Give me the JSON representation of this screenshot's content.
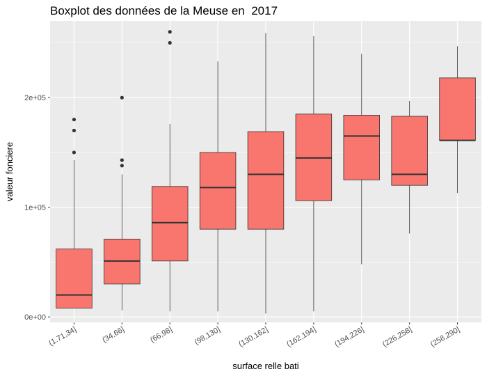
{
  "chart_data": {
    "type": "boxplot",
    "title": "Boxplot des données de la Meuse en  2017",
    "xlabel": "surface relle bati",
    "ylabel": "valeur fonciere",
    "ylim": [
      -5000,
      270000
    ],
    "y_ticks": [
      {
        "value": 0,
        "label": "0e+00"
      },
      {
        "value": 100000,
        "label": "1e+05"
      },
      {
        "value": 200000,
        "label": "2e+05"
      }
    ],
    "grid": true,
    "fill_color": "#F8766D",
    "panel_color": "#EBEBEB",
    "categories": [
      "(1.71,34]",
      "(34,66]",
      "(66,98]",
      "(98,130]",
      "(130,162]",
      "(162,194]",
      "(194,226]",
      "(226,258]",
      "(258,290]"
    ],
    "boxes": [
      {
        "category": "(1.71,34]",
        "whisker_low": 8000,
        "q1": 8000,
        "median": 20000,
        "q3": 62000,
        "whisker_high": 143000,
        "outliers": [
          150000,
          170000,
          180000
        ]
      },
      {
        "category": "(34,66]",
        "whisker_low": 6000,
        "q1": 30000,
        "median": 51000,
        "q3": 71000,
        "whisker_high": 130000,
        "outliers": [
          138000,
          143000,
          200000
        ]
      },
      {
        "category": "(66,98]",
        "whisker_low": 5000,
        "q1": 51000,
        "median": 86000,
        "q3": 119000,
        "whisker_high": 176000,
        "outliers": [
          250000,
          260000
        ]
      },
      {
        "category": "(98,130]",
        "whisker_low": 5000,
        "q1": 80000,
        "median": 118000,
        "q3": 150000,
        "whisker_high": 233000,
        "outliers": []
      },
      {
        "category": "(130,162]",
        "whisker_low": 3000,
        "q1": 80000,
        "median": 130000,
        "q3": 169000,
        "whisker_high": 259000,
        "outliers": []
      },
      {
        "category": "(162,194]",
        "whisker_low": 5000,
        "q1": 106000,
        "median": 145000,
        "q3": 185000,
        "whisker_high": 256000,
        "outliers": []
      },
      {
        "category": "(194,226]",
        "whisker_low": 48000,
        "q1": 125000,
        "median": 165000,
        "q3": 184000,
        "whisker_high": 240000,
        "outliers": []
      },
      {
        "category": "(226,258]",
        "whisker_low": 76000,
        "q1": 120000,
        "median": 130000,
        "q3": 183000,
        "whisker_high": 197000,
        "outliers": []
      },
      {
        "category": "(258,290]",
        "whisker_low": 113000,
        "q1": 161000,
        "median": 161000,
        "q3": 218000,
        "whisker_high": 247000,
        "outliers": []
      }
    ]
  }
}
